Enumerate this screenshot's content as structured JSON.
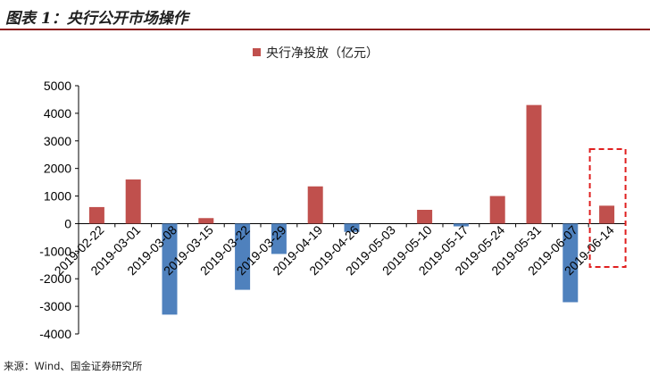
{
  "header": {
    "title": "图表 1：央行公开市场操作"
  },
  "footer": {
    "source": "来源：Wind、国金证券研究所"
  },
  "colors": {
    "positive": "#c0504d",
    "negative": "#4f81bd",
    "highlight": "#e02020",
    "title_rule": "#8b1a1a"
  },
  "chart_data": {
    "type": "bar",
    "legend": [
      "央行净投放（亿元）"
    ],
    "legend_position": "top",
    "categories": [
      "2019-02-22",
      "2019-03-01",
      "2019-03-08",
      "2019-03-15",
      "2019-03-22",
      "2019-03-29",
      "2019-04-19",
      "2019-04-26",
      "2019-05-03",
      "2019-05-10",
      "2019-05-17",
      "2019-05-24",
      "2019-05-31",
      "2019-06-07",
      "2019-06-14"
    ],
    "series": [
      {
        "name": "央行净投放（亿元）",
        "values": [
          600,
          1600,
          -3300,
          200,
          -2400,
          -1100,
          1350,
          -300,
          0,
          500,
          -100,
          1000,
          4300,
          -2850,
          650
        ]
      }
    ],
    "ylim": [
      -4000,
      5000
    ],
    "yticks": [
      "-4000",
      "-3000",
      "-2000",
      "-1000",
      "0",
      "1000",
      "2000",
      "3000",
      "4000",
      "5000"
    ],
    "grid": false,
    "highlight_category": "2019-06-14"
  }
}
